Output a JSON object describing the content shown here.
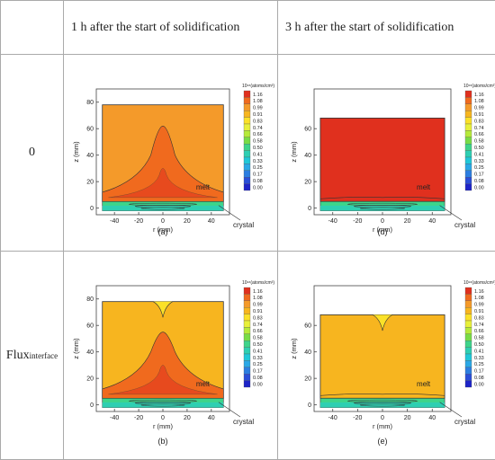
{
  "header": {
    "col1": "1 h after the start of solidification",
    "col2": "3 h after the start of solidification"
  },
  "rows": [
    {
      "label": "0",
      "label_sub": ""
    },
    {
      "label": "Flux",
      "label_sub": "interface"
    }
  ],
  "panels": {
    "a": {
      "tag": "(a)",
      "melt": "melt",
      "crystal": "crystal"
    },
    "b": {
      "tag": "(b)",
      "melt": "melt",
      "crystal": "crystal"
    },
    "d": {
      "tag": "(d)",
      "melt": "melt",
      "crystal": "crystal"
    },
    "e": {
      "tag": "(e)",
      "melt": "melt",
      "crystal": "crystal"
    }
  },
  "axes": {
    "xlabel": "r (mm)",
    "ylabel": "z (mm)",
    "xticks": [
      "-40",
      "-20",
      "0",
      "20",
      "40"
    ],
    "yticks": [
      "0",
      "20",
      "40",
      "60",
      "80"
    ]
  },
  "legend": {
    "title": "10¹⁸(atoms/cm³)",
    "levels": [
      "1.16",
      "1.08",
      "0.99",
      "0.91",
      "0.83",
      "0.74",
      "0.66",
      "0.58",
      "0.50",
      "0.41",
      "0.33",
      "0.25",
      "0.17",
      "0.08",
      "0.00"
    ],
    "colors": [
      "#e0301e",
      "#f06a1e",
      "#f49a2a",
      "#f7b51f",
      "#fbe128",
      "#e8f03a",
      "#b6ea3a",
      "#78dc46",
      "#3ed48a",
      "#2ecfb2",
      "#20c8d8",
      "#2aa8e6",
      "#2c7ee0",
      "#2a4ed8",
      "#1e24c8"
    ]
  },
  "chart_data": {
    "type": "heatmap",
    "title": "",
    "xlabel": "r (mm)",
    "ylabel": "z (mm)",
    "xlim": [
      -55,
      55
    ],
    "ylim": [
      -5,
      90
    ],
    "legend_levels": [
      1.16,
      1.08,
      0.99,
      0.91,
      0.83,
      0.74,
      0.66,
      0.58,
      0.5,
      0.41,
      0.33,
      0.25,
      0.17,
      0.08,
      0.0
    ],
    "legend_unit": "10¹⁸(atoms/cm³)",
    "panels": [
      "(a)",
      "(b)",
      "(d)",
      "(e)"
    ],
    "melt_top_z": {
      "(a)": 78,
      "(b)": 78,
      "(d)": 68,
      "(e)": 68
    }
  }
}
